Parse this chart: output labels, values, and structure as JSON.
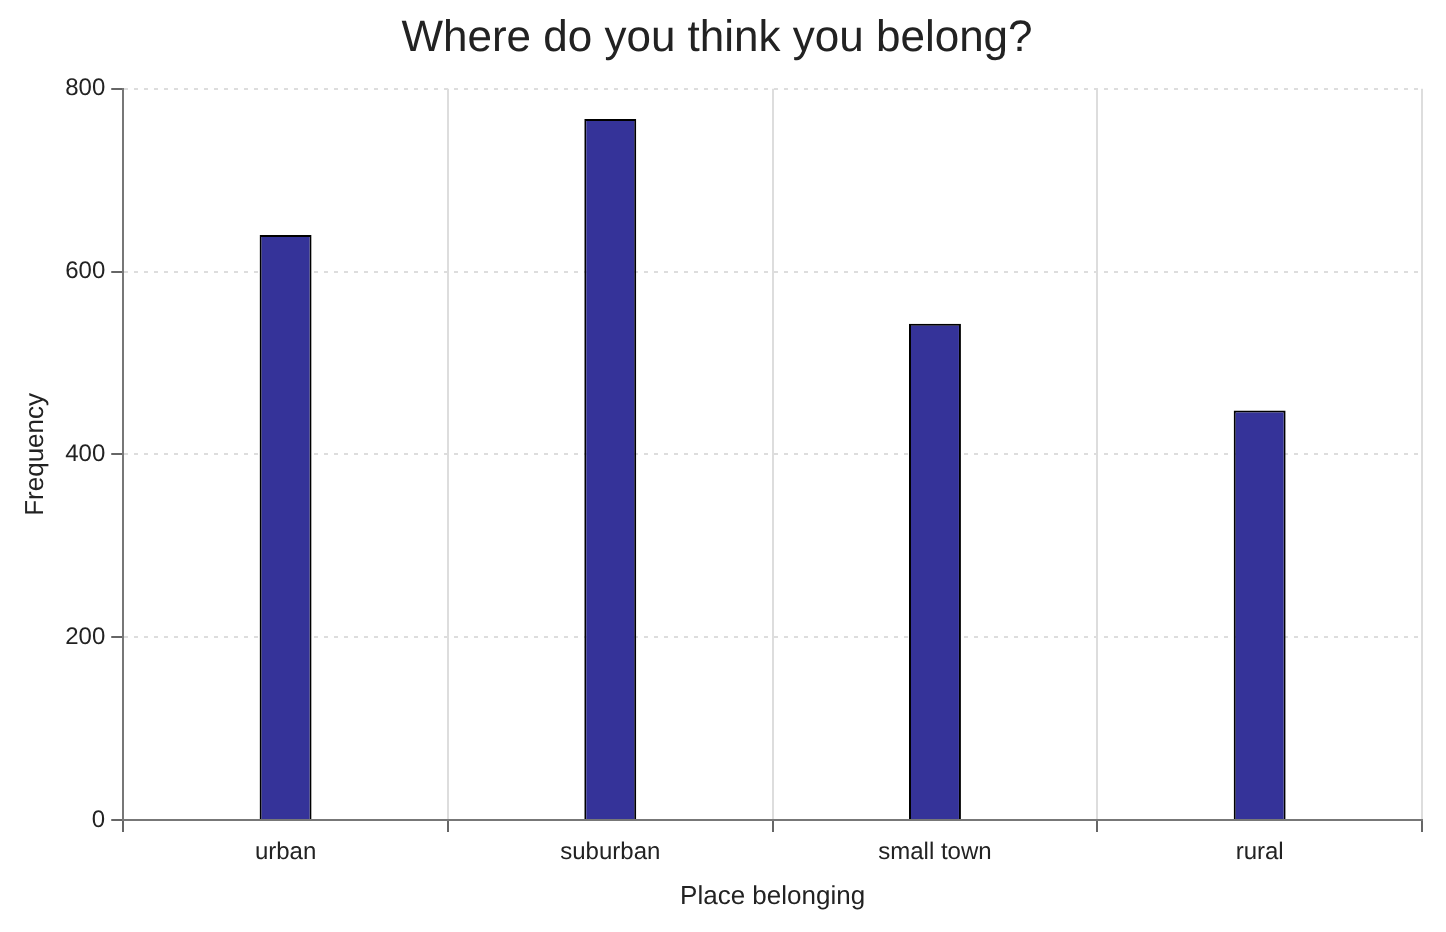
{
  "chart_data": {
    "type": "bar",
    "title": "Where do you think you belong?",
    "xlabel": "Place belonging",
    "ylabel": "Frequency",
    "categories": [
      "urban",
      "suburban",
      "small town",
      "rural"
    ],
    "values": [
      640,
      767,
      543,
      448
    ],
    "color": "#353399",
    "ylim": [
      0,
      800
    ],
    "yticks": [
      0,
      200,
      400,
      600,
      800
    ],
    "grid": true
  }
}
